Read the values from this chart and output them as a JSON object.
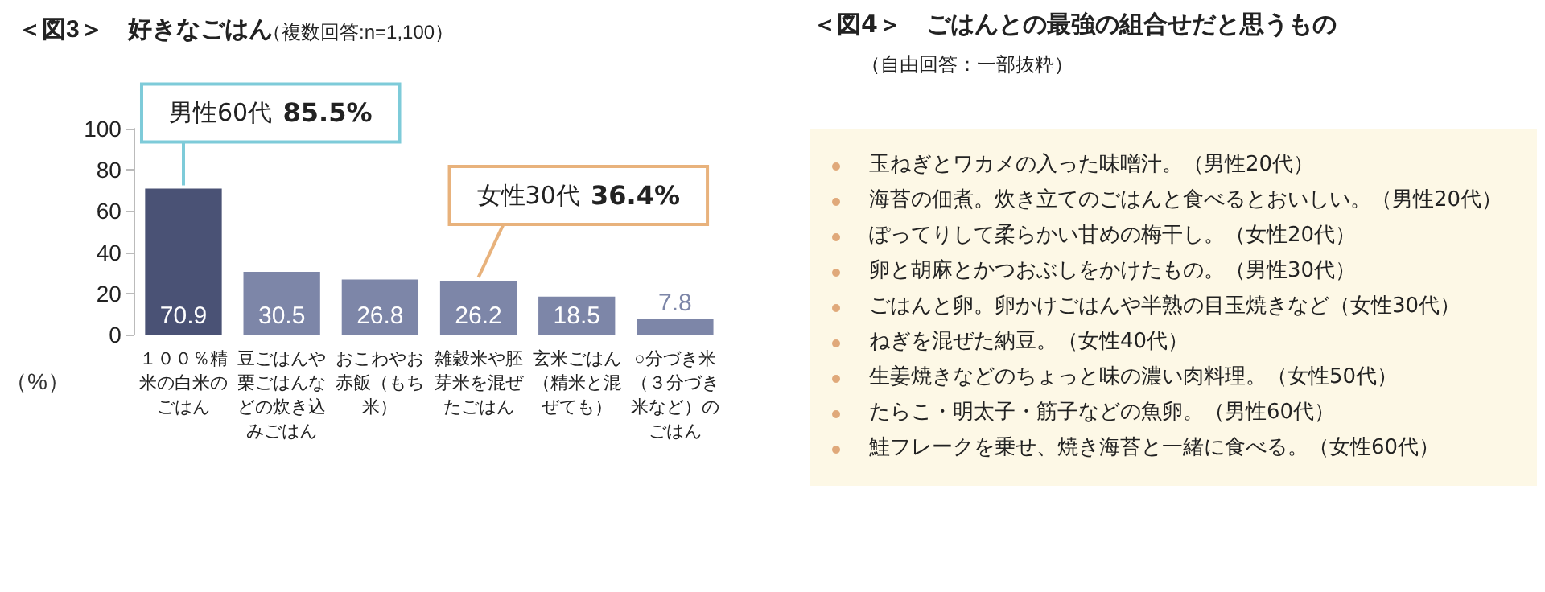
{
  "chart_data": [
    {
      "type": "bar",
      "title": "＜図3＞　好きなごはん",
      "subtitle": "（複数回答:n=1,100）",
      "ylabel": "（%）",
      "categories": [
        "１００％精米の白米のごはん",
        "豆ごはんや栗ごはんなどの炊き込みごはん",
        "おこわやお赤飯（もち米）",
        "雑穀米や胚芽米を混ぜたごはん",
        "玄米ごはん（精米と混ぜても）",
        "○分づき米（３分づき米など）のごはん"
      ],
      "values": [
        70.9,
        30.5,
        26.8,
        26.2,
        18.5,
        7.8
      ],
      "colors": [
        "#4a5275",
        "#7d86a8",
        "#7d86a8",
        "#7d86a8",
        "#7d86a8",
        "#7d86a8"
      ],
      "ylim": [
        0,
        100
      ],
      "yticks": [
        0,
        20,
        40,
        60,
        80,
        100
      ],
      "grid": false,
      "data_labels": true,
      "annotations": [
        {
          "text": "男性60代 85.5%",
          "x": "１００％精米の白米のごはん",
          "y": 70.9
        },
        {
          "text": "女性30代 36.4%",
          "x": "雑穀米や胚芽米を混ぜたごはん",
          "y": 26.2
        }
      ]
    },
    {
      "type": "other",
      "title": "＜図4＞　ごはんとの最強の組合せだと思うもの",
      "subtitle": "（自由回答：一部抜粋）",
      "annotations": [
        "玉ねぎとワカメの入った味噌汁。（男性20代）",
        "海苔の佃煮。炊き立てのごはんと食べるとおいしい。（男性20代）",
        "ぽってりして柔らかい甘めの梅干し。（女性20代）",
        "卵と胡麻とかつおぶしをかけたもの。（男性30代）",
        "ごはんと卵。卵かけごはんや半熟の目玉焼きなど（女性30代）",
        "ねぎを混ぜた納豆。（女性40代）",
        "生姜焼きなどのちょっと味の濃い肉料理。（女性50代）",
        "たらこ・明太子・筋子などの魚卵。（男性60代）",
        "鮭フレークを乗せ、焼き海苔と一緒に食べる。（女性60代）"
      ]
    }
  ]
}
